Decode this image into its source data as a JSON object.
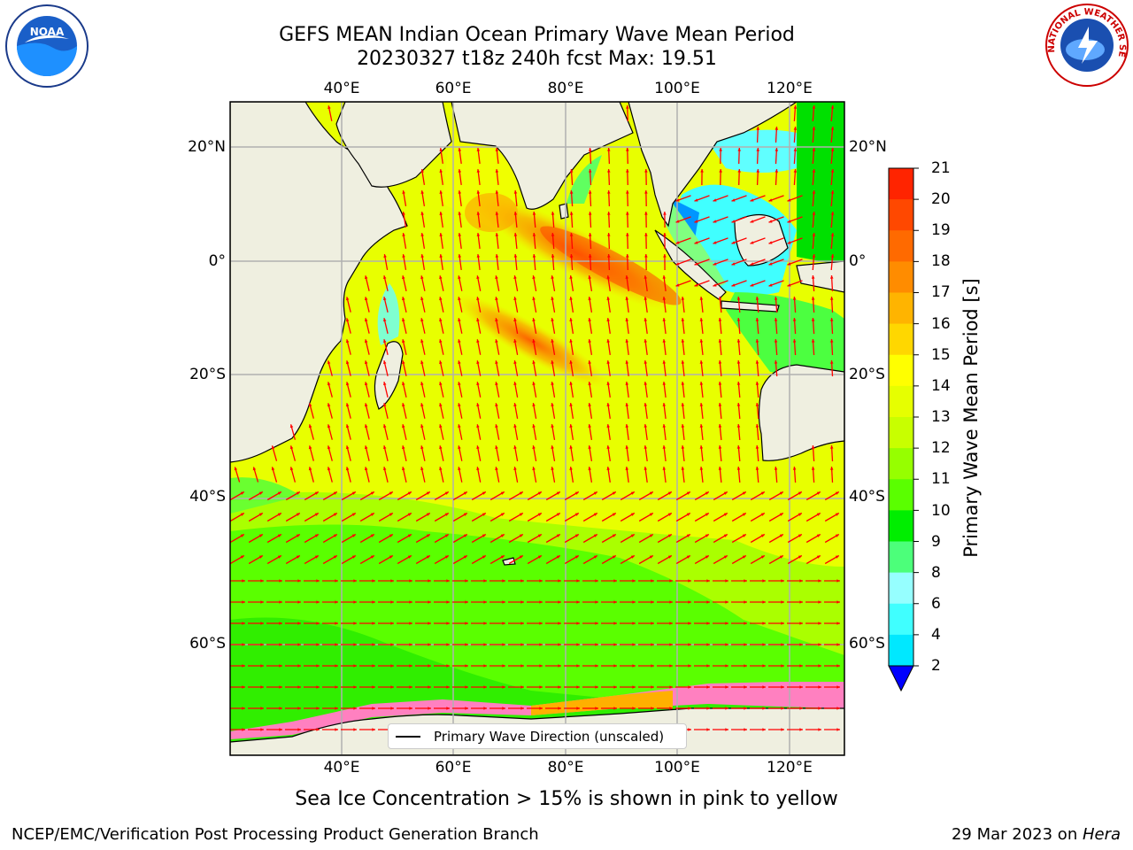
{
  "title": "GEFS MEAN Indian Ocean Primary Wave Mean Period",
  "subtitle": "20230327 t18z 240h fcst   Max: 19.51",
  "top_lon_labels": [
    "40°E",
    "60°E",
    "80°E",
    "100°E",
    "120°E"
  ],
  "bottom_lon_labels": [
    "40°E",
    "60°E",
    "80°E",
    "100°E",
    "120°E"
  ],
  "left_lat_labels": [
    "20°N",
    "0°",
    "20°S",
    "40°S",
    "60°S"
  ],
  "right_lat_labels": [
    "20°N",
    "0°",
    "20°S",
    "40°S",
    "60°S"
  ],
  "colorbar": {
    "label": "Primary Wave Mean Period [s]",
    "ticks": [
      "21",
      "20",
      "19",
      "18",
      "17",
      "16",
      "15",
      "14",
      "13",
      "12",
      "11",
      "10",
      "9",
      "8",
      "6",
      "4",
      "2"
    ],
    "colors": [
      "#ff0000",
      "#ff2400",
      "#ff4800",
      "#ff6a00",
      "#ff8c00",
      "#ffb400",
      "#ffd700",
      "#ffff00",
      "#e6ff00",
      "#c8ff00",
      "#96ff00",
      "#5aff00",
      "#00ee00",
      "#4cff7a",
      "#96ffff",
      "#40ffff",
      "#00e8ff",
      "#0096ff",
      "#0000ff"
    ],
    "min_arrow_color": "#0000ff"
  },
  "legend_label": "Primary Wave Direction (unscaled)",
  "sea_ice_note": "Sea Ice Concentration > 15% is shown in pink to yellow",
  "footer_left": "NCEP/EMC/Verification Post Processing Product Generation Branch",
  "footer_date": "29 Mar 2023 on ",
  "footer_machine": "Hera",
  "logos": {
    "left_text": "NOAA",
    "right_text": "NATIONAL WEATHER SERVICE"
  },
  "colors": {
    "land": "#efefe0",
    "arrow": "#ff0000",
    "grid": "#b0b0b0"
  }
}
